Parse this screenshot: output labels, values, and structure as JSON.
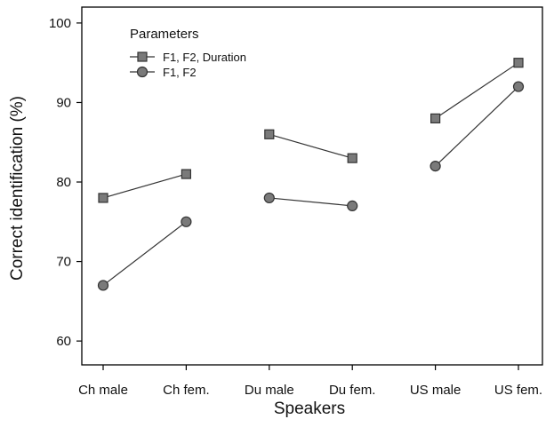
{
  "chart_data": {
    "type": "line",
    "categories": [
      "Ch male",
      "Ch fem.",
      "Du male",
      "Du fem.",
      "US male",
      "US fem."
    ],
    "groups": [
      [
        0,
        1
      ],
      [
        2,
        3
      ],
      [
        4,
        5
      ]
    ],
    "series": [
      {
        "name": "F1, F2, Duration",
        "marker": "square",
        "values": [
          78,
          81,
          86,
          83,
          88,
          95
        ]
      },
      {
        "name": "F1, F2",
        "marker": "circle",
        "values": [
          67,
          75,
          78,
          77,
          82,
          92
        ]
      }
    ],
    "xlabel": "Speakers",
    "ylabel": "Correct identification (%)",
    "ylim": [
      57,
      102
    ],
    "yticks": [
      60,
      70,
      80,
      90,
      100
    ],
    "legend": {
      "title": "Parameters",
      "position": "top-left"
    },
    "grid": false,
    "colors": {
      "marker_fill": "#7a7a7a",
      "marker_stroke": "#333333",
      "line": "#333333",
      "axis": "#000000"
    }
  }
}
